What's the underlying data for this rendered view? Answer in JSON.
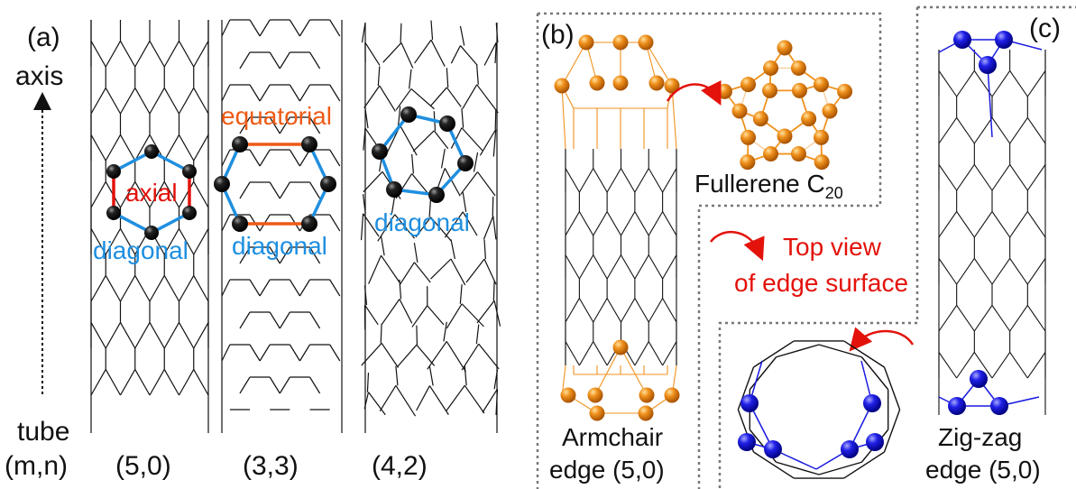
{
  "panel_a": {
    "label": "(a)",
    "axis_text": "axis",
    "tube_text": "tube",
    "mn_text": "(m,n)",
    "tubes": [
      {
        "index": "(5,0)",
        "bond_labels": [
          "axial",
          "diagonal"
        ]
      },
      {
        "index": "(3,3)",
        "bond_labels": [
          "equatorial",
          "diagonal"
        ]
      },
      {
        "index": "(4,2)",
        "bond_labels": [
          "diagonal"
        ]
      }
    ]
  },
  "panel_b": {
    "label": "(b)",
    "fullerene_text": "Fullerene C",
    "fullerene_sub": "20",
    "edge_line1": "Armchair",
    "edge_line2": "edge (5,0)"
  },
  "top_view": {
    "line1": "Top view",
    "line2": "of edge surface"
  },
  "panel_c": {
    "label": "(c)",
    "edge_line1": "Zig-zag",
    "edge_line2": "edge (5,0)"
  },
  "colors": {
    "axial": "#e3120b",
    "equatorial": "#ee5a16",
    "diagonal": "#1f8fe0",
    "armchair_atoms": "#f0921e",
    "zigzag_atoms": "#1a1ae0",
    "arrow": "#e3120b",
    "mesh": "#111111"
  }
}
